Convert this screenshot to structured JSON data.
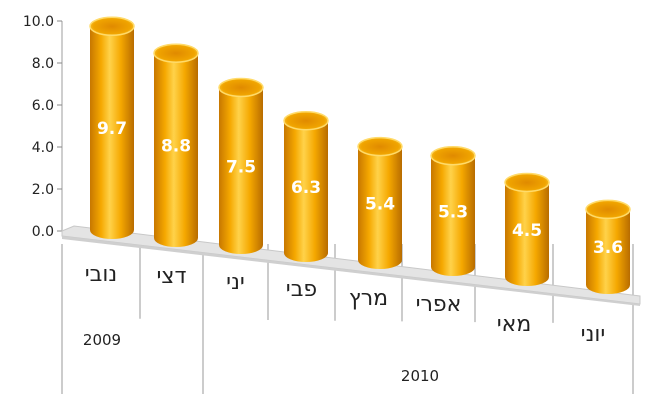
{
  "chart_data": {
    "type": "bar",
    "style": "3d-cylinder",
    "categories": [
      "נובי",
      "דצי",
      "יני",
      "פבי",
      "מרץ",
      "אפרי",
      "מאי",
      "יוני"
    ],
    "values": [
      9.7,
      8.8,
      7.5,
      6.3,
      5.4,
      5.3,
      4.5,
      3.6
    ],
    "value_labels": [
      "9.7",
      "8.8",
      "7.5",
      "6.3",
      "5.4",
      "5.3",
      "4.5",
      "3.6"
    ],
    "y_ticks": [
      "0.0",
      "2.0",
      "4.0",
      "6.0",
      "8.0",
      "10.0"
    ],
    "ylim": [
      0,
      10
    ],
    "year_groups": [
      {
        "label": "2009",
        "count": 2
      },
      {
        "label": "2010",
        "count": 6
      }
    ],
    "title": "",
    "xlabel": "",
    "ylabel": "",
    "grid": false,
    "legend": "none",
    "colors": {
      "bar_light": "#ffd24a",
      "bar_mid": "#f5a800",
      "bar_dark": "#c77700",
      "floor": "#e4e4e4",
      "axis": "#bdbdbd"
    }
  }
}
